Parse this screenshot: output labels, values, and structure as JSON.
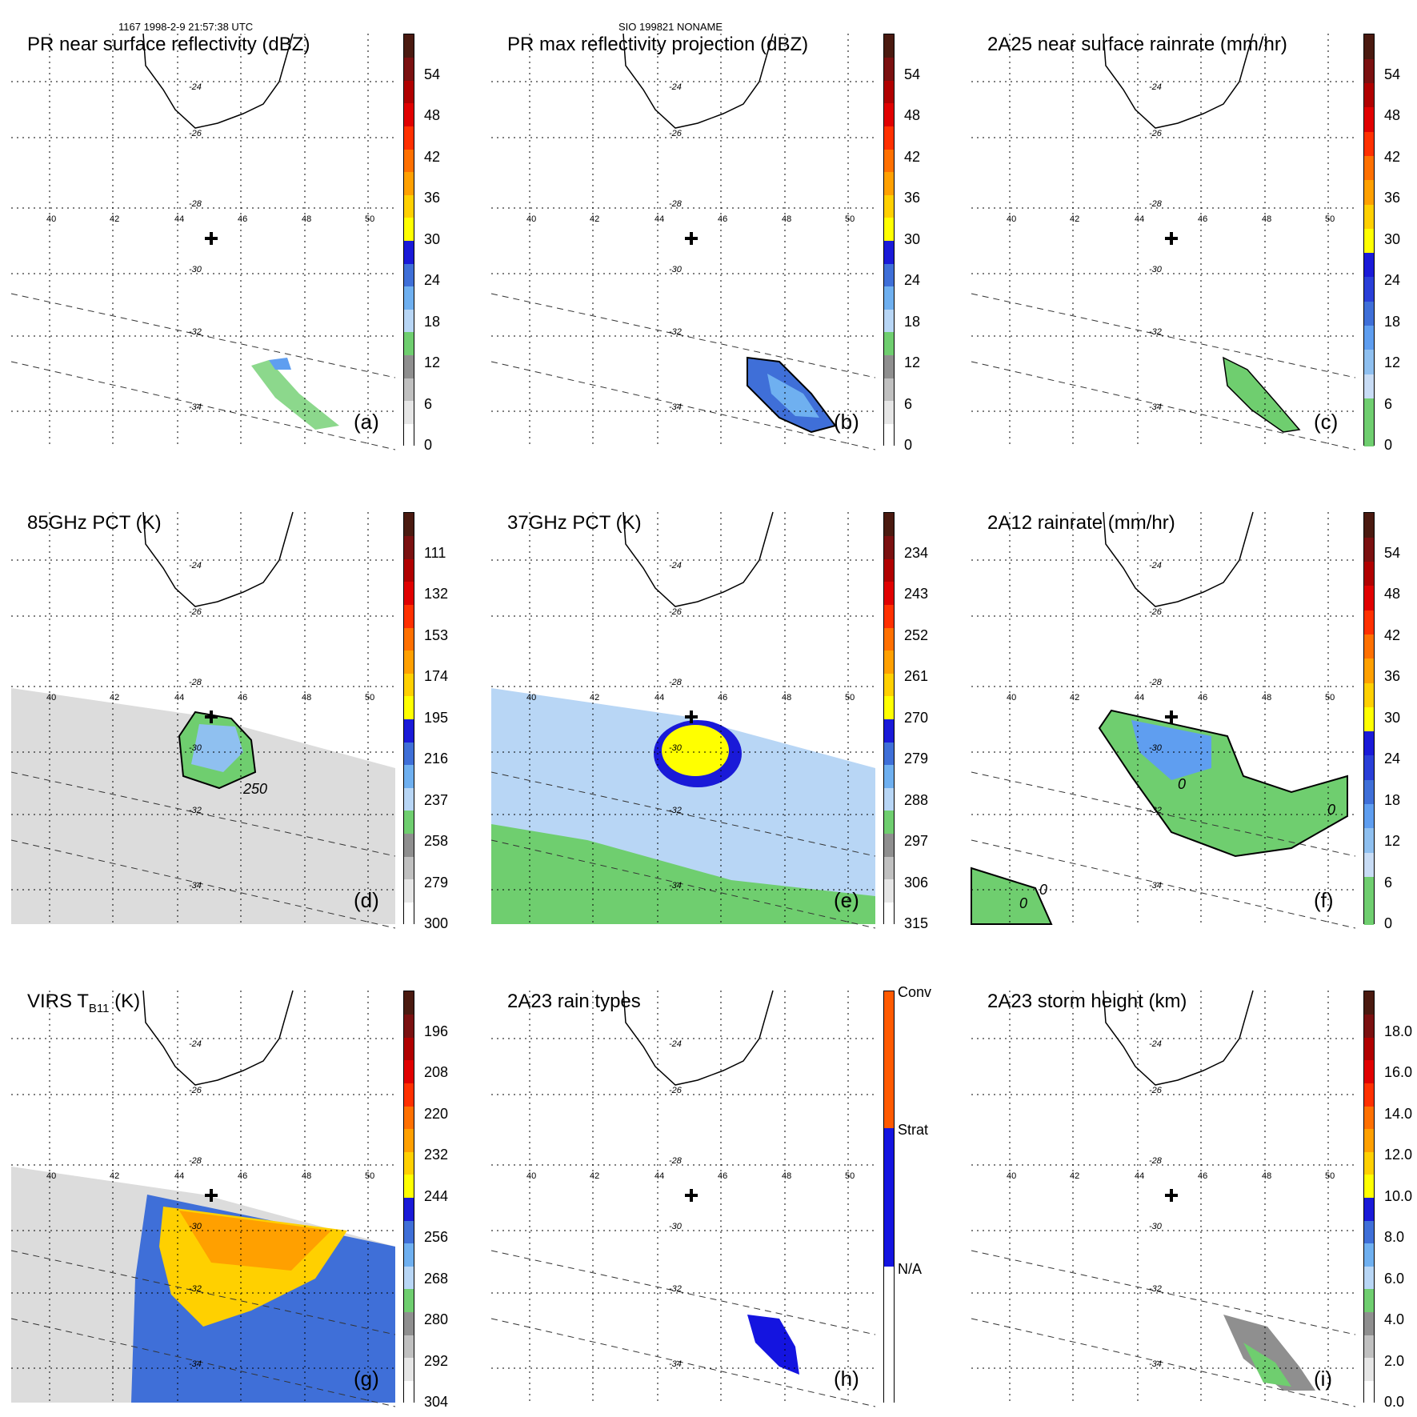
{
  "header": {
    "left": "1167 1998-2-9 21:57:38 UTC",
    "center": "SIO 199821 NONAME"
  },
  "grid": {
    "lat_labels": [
      "-24",
      "-26",
      "-28",
      "-30",
      "-32",
      "-34"
    ],
    "lon_labels": [
      "40",
      "42",
      "44",
      "46",
      "48",
      "50"
    ]
  },
  "panels": [
    {
      "title": "PR near surface reflectivity (dBZ)",
      "label": "(a)",
      "ticks": [
        "54",
        "48",
        "42",
        "36",
        "30",
        "24",
        "18",
        "12",
        "6",
        "0"
      ],
      "colorbar": "std"
    },
    {
      "title": "PR max reflectivity projection (dBZ)",
      "label": "(b)",
      "ticks": [
        "54",
        "48",
        "42",
        "36",
        "30",
        "24",
        "18",
        "12",
        "6",
        "0"
      ],
      "colorbar": "std"
    },
    {
      "title": "2A25 near surface rainrate (mm/hr)",
      "label": "(c)",
      "ticks": [
        "54",
        "48",
        "42",
        "36",
        "30",
        "24",
        "18",
        "12",
        "6",
        "0"
      ],
      "colorbar": "rain"
    },
    {
      "title": "85GHz PCT (K)",
      "label": "(d)",
      "ticks": [
        "111",
        "132",
        "153",
        "174",
        "195",
        "216",
        "237",
        "258",
        "279",
        "300"
      ],
      "colorbar": "std",
      "contour_label": "250"
    },
    {
      "title": "37GHz PCT (K)",
      "label": "(e)",
      "ticks": [
        "234",
        "243",
        "252",
        "261",
        "270",
        "279",
        "288",
        "297",
        "306",
        "315"
      ],
      "colorbar": "std"
    },
    {
      "title": "2A12 rainrate (mm/hr)",
      "label": "(f)",
      "ticks": [
        "54",
        "48",
        "42",
        "36",
        "30",
        "24",
        "18",
        "12",
        "6",
        "0"
      ],
      "colorbar": "rain",
      "contour_label": "0"
    },
    {
      "title": "VIRS T",
      "title_sub": "B11",
      "title_suffix": " (K)",
      "label": "(g)",
      "ticks": [
        "196",
        "208",
        "220",
        "232",
        "244",
        "256",
        "268",
        "280",
        "292",
        "304"
      ],
      "colorbar": "std"
    },
    {
      "title": "2A23 rain types",
      "label": "(h)",
      "ticks": [
        "Conv",
        "Strat",
        "N/A"
      ],
      "colorbar": "types"
    },
    {
      "title": "2A23 storm height (km)",
      "label": "(i)",
      "ticks": [
        "18.0",
        "16.0",
        "14.0",
        "12.0",
        "10.0",
        "8.0",
        "6.0",
        "4.0",
        "2.0",
        "0.0"
      ],
      "colorbar": "std"
    }
  ],
  "colors": {
    "std": [
      "#ffffff",
      "#e6e6e6",
      "#c0c0c0",
      "#8f8f8f",
      "#6fce6f",
      "#b8d6f5",
      "#6fb0f0",
      "#3f6fd8",
      "#1a1ad8",
      "#ffff00",
      "#ffd000",
      "#ffa000",
      "#ff7000",
      "#ff3000",
      "#e00000",
      "#b00000",
      "#7a1010",
      "#4a1a10"
    ],
    "rain": [
      "#6fce6f",
      "#6fce6f",
      "#c8dcf5",
      "#8fc0f0",
      "#5f9ef0",
      "#3f6fd8",
      "#2a3fd8",
      "#1a1ad8",
      "#ffff00",
      "#ffd000",
      "#ffa000",
      "#ff7000",
      "#ff3000",
      "#e00000",
      "#b00000",
      "#7a1010",
      "#4a1a10"
    ],
    "types_conv": "#ff5a00",
    "types_strat": "#1414e0",
    "types_na": "#ffffff"
  }
}
